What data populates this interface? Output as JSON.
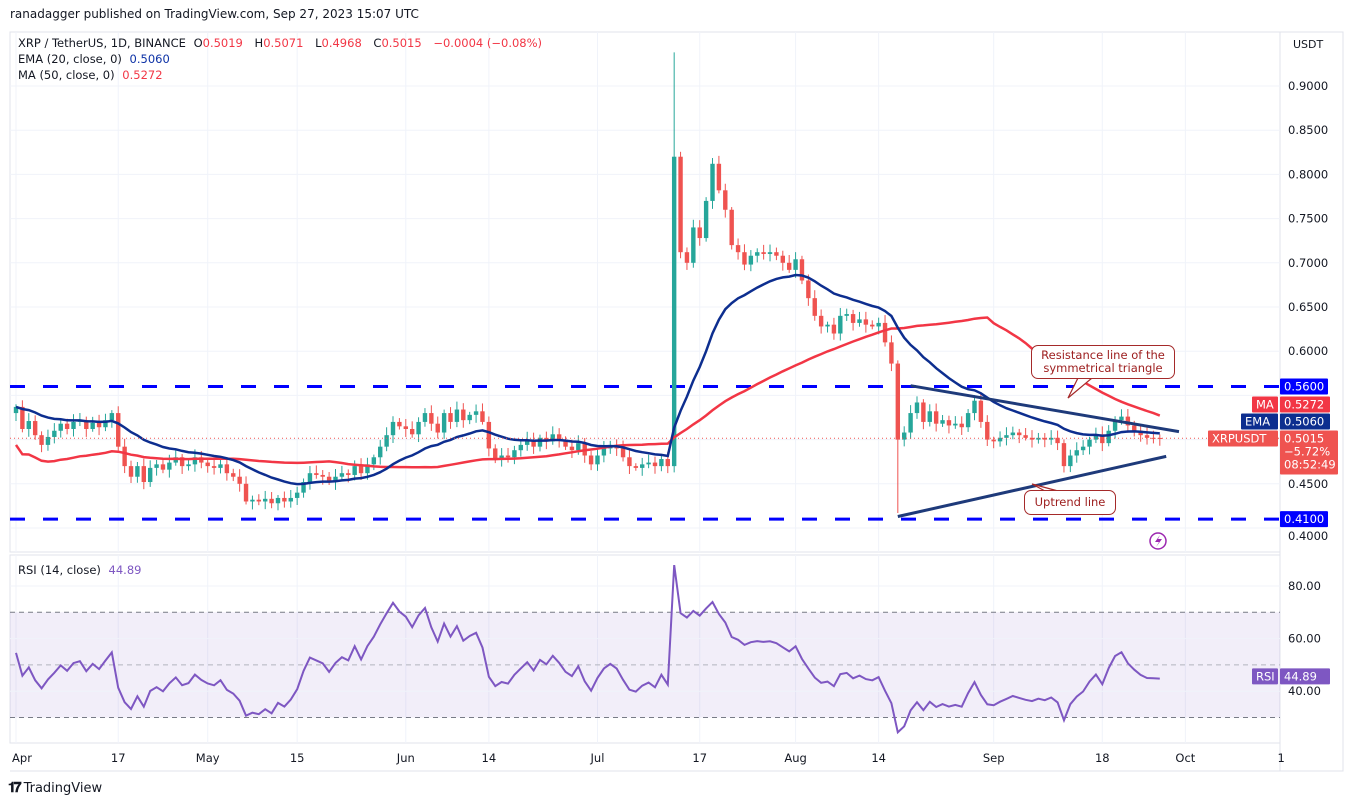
{
  "header": {
    "published": "ranadagger published on TradingView.com, Sep 27, 2023 15:07 UTC",
    "symbol": "XRP / TetherUS, 1D, BINANCE",
    "o_label": "O",
    "o": "0.5019",
    "h_label": "H",
    "h": "0.5071",
    "l_label": "L",
    "l": "0.4968",
    "c_label": "C",
    "c": "0.5015",
    "change": "−0.0004 (−0.08%)",
    "ema_label": "EMA (20, close, 0)",
    "ema_value": "0.5060",
    "ma_label": "MA (50, close, 0)",
    "ma_value": "0.5272",
    "rsi_label": "RSI (14, close)",
    "rsi_value": "44.89"
  },
  "price_axis": {
    "currency": "USDT",
    "ticks": [
      "0.9000",
      "0.8500",
      "0.8000",
      "0.7500",
      "0.7000",
      "0.6500",
      "0.6000",
      "0.4500",
      "0.4000"
    ],
    "tick_values": [
      0.9,
      0.85,
      0.8,
      0.75,
      0.7,
      0.65,
      0.6,
      0.45,
      0.4
    ],
    "labels": {
      "resistance": "0.5600",
      "ma_tag": "MA",
      "ma": "0.5272",
      "ema_tag": "EMA",
      "ema": "0.5060",
      "symbol_tag": "XRPUSDT",
      "last": "0.5015",
      "last_change": "−5.72%",
      "countdown": "08:52:49",
      "support": "0.4100"
    }
  },
  "rsi_axis": {
    "ticks": [
      "80.00",
      "60.00",
      "40.00"
    ],
    "tick_values": [
      80,
      60,
      40
    ],
    "tag": "RSI",
    "value": "44.89"
  },
  "time_axis": {
    "ticks": [
      "Apr",
      "17",
      "May",
      "15",
      "Jun",
      "14",
      "Jul",
      "17",
      "Aug",
      "14",
      "Sep",
      "18",
      "Oct",
      "1"
    ]
  },
  "annotations": {
    "resistance_callout": "Resistance line of the symmetrical triangle",
    "uptrend_callout": "Uptrend line"
  },
  "branding": {
    "logo": "TradingView"
  },
  "colors": {
    "up": "#26a69a",
    "down": "#ef5350",
    "ema": "#0d2e8f",
    "ma": "#f23645",
    "levels": "#0000ff",
    "rsi": "#7e57c2",
    "trendlines": "#1e3a7a"
  },
  "chart_data": {
    "type": "candlestick",
    "symbol": "XRPUSDT",
    "interval": "1D",
    "closes_by_month": {
      "Apr": [
        0.537,
        0.512,
        0.521,
        0.505,
        0.494,
        0.503,
        0.51,
        0.518,
        0.512,
        0.52,
        0.522,
        0.512,
        0.519,
        0.514,
        0.522,
        0.53,
        0.492,
        0.47,
        0.458,
        0.47,
        0.452,
        0.468,
        0.472,
        0.466,
        0.474,
        0.48,
        0.47,
        0.472,
        0.48,
        0.474
      ],
      "May": [
        0.47,
        0.468,
        0.472,
        0.462,
        0.458,
        0.45,
        0.43,
        0.432,
        0.43,
        0.433,
        0.428,
        0.434,
        0.43,
        0.434,
        0.44,
        0.452,
        0.462,
        0.46,
        0.458,
        0.452,
        0.458,
        0.462,
        0.46,
        0.47,
        0.462,
        0.472,
        0.48,
        0.492,
        0.505,
        0.52,
        0.515
      ],
      "Jun": [
        0.512,
        0.506,
        0.52,
        0.53,
        0.518,
        0.508,
        0.53,
        0.52,
        0.534,
        0.522,
        0.528,
        0.532,
        0.52,
        0.49,
        0.478,
        0.482,
        0.48,
        0.488,
        0.494,
        0.5,
        0.492,
        0.502,
        0.498,
        0.506,
        0.5,
        0.492,
        0.488,
        0.496,
        0.482,
        0.472
      ],
      "Jul": [
        0.482,
        0.49,
        0.494,
        0.49,
        0.48,
        0.47,
        0.468,
        0.472,
        0.474,
        0.47,
        0.478,
        0.47,
        0.82,
        0.712,
        0.7,
        0.74,
        0.728,
        0.77,
        0.812,
        0.782,
        0.76,
        0.72,
        0.712,
        0.698,
        0.708,
        0.712,
        0.71,
        0.712,
        0.708,
        0.7,
        0.692
      ],
      "Aug": [
        0.704,
        0.68,
        0.66,
        0.64,
        0.628,
        0.63,
        0.62,
        0.64,
        0.642,
        0.632,
        0.636,
        0.63,
        0.628,
        0.632,
        0.61,
        0.586,
        0.5,
        0.508,
        0.53,
        0.542,
        0.52,
        0.532,
        0.518,
        0.522,
        0.516,
        0.518,
        0.514,
        0.53,
        0.544,
        0.52,
        0.5
      ],
      "Sep": [
        0.498,
        0.502,
        0.505,
        0.508,
        0.505,
        0.502,
        0.5,
        0.502,
        0.5,
        0.502,
        0.496,
        0.47,
        0.482,
        0.488,
        0.492,
        0.5,
        0.506,
        0.496,
        0.51,
        0.522,
        0.526,
        0.516,
        0.51,
        0.505,
        0.502,
        0.5019,
        0.5015
      ]
    },
    "notable_wicks": [
      {
        "date": "Jul 13",
        "high": 0.938
      },
      {
        "date": "Aug 17",
        "low": 0.417
      }
    ],
    "horizontal_levels": [
      0.56,
      0.41
    ],
    "resistance_line": [
      {
        "date": "Aug 19",
        "price": 0.561
      },
      {
        "date": "Sep 30",
        "price": 0.509
      }
    ],
    "uptrend_line": [
      {
        "date": "Aug 17",
        "price": 0.413
      },
      {
        "date": "Sep 28",
        "price": 0.481
      }
    ],
    "indicators": [
      "EMA 20",
      "MA 50",
      "RSI 14"
    ],
    "rsi_levels": [
      70,
      50,
      30
    ],
    "ylim": [
      0.39,
      0.96
    ],
    "rsi_ylim": [
      18,
      92
    ],
    "grid": true
  }
}
